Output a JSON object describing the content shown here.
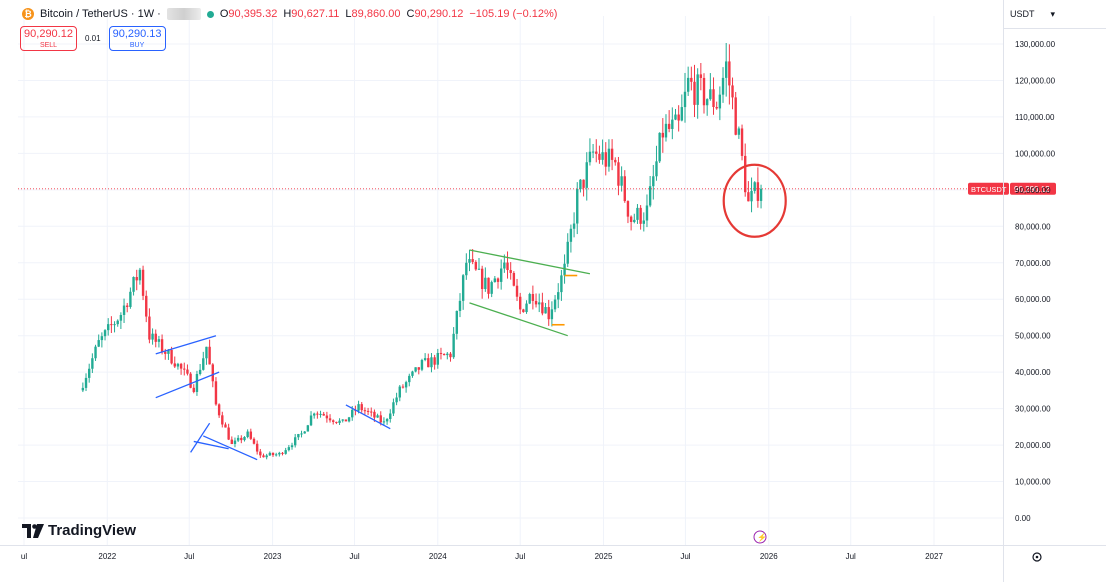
{
  "legend": {
    "symbol": "Bitcoin / TetherUS · 1W ·",
    "coin_icon": "bitcoin-icon",
    "open_label": "O",
    "open": "90,395.32",
    "high_label": "H",
    "high": "90,627.11",
    "low_label": "L",
    "low": "89,860.00",
    "close_label": "C",
    "close": "90,290.12",
    "change": "−105.19 (−0.12%)"
  },
  "trade": {
    "sell_price": "90,290.12",
    "sell_label": "SELL",
    "spread": "0.01",
    "buy_price": "90,290.13",
    "buy_label": "BUY"
  },
  "currency": "USDT",
  "currency_dropdown_icon": "chevron-down-icon",
  "logo_text": "TradingView",
  "price_tag": {
    "label": "BTCUSDT",
    "value": "90,290.12"
  },
  "colors": {
    "up": "#22ab94",
    "down": "#f23645",
    "blue_pattern": "#2962ff",
    "green_pattern": "#4caf50",
    "orange_marker": "#ff9800",
    "circle": "#e53935"
  },
  "chart_data": {
    "type": "candlestick",
    "y_axis": {
      "ticks": [
        0,
        10000,
        20000,
        30000,
        40000,
        50000,
        60000,
        70000,
        80000,
        90000,
        100000,
        110000,
        120000,
        130000
      ],
      "tick_labels": [
        "0.00",
        "10,000.00",
        "20,000.00",
        "30,000.00",
        "40,000.00",
        "50,000.00",
        "60,000.00",
        "70,000.00",
        "80,000.00",
        "90,000.00",
        "100,000.00",
        "110,000.00",
        "120,000.00",
        "130,000.00"
      ]
    },
    "x_axis": {
      "ticks": [
        {
          "label": "ul",
          "date": "2021-07"
        },
        {
          "label": "2022",
          "date": "2022-01"
        },
        {
          "label": "Jul",
          "date": "2022-07"
        },
        {
          "label": "2023",
          "date": "2023-01"
        },
        {
          "label": "Jul",
          "date": "2023-07"
        },
        {
          "label": "2024",
          "date": "2024-01"
        },
        {
          "label": "Jul",
          "date": "2024-07"
        },
        {
          "label": "2025",
          "date": "2025-01"
        },
        {
          "label": "Jul",
          "date": "2025-07"
        },
        {
          "label": "2026",
          "date": "2026-01"
        },
        {
          "label": "Jul",
          "date": "2026-07"
        },
        {
          "label": "2027",
          "date": "2027-01"
        }
      ]
    },
    "date_range": [
      "2021-11-08",
      "2025-12-15"
    ],
    "last_price": 90290.12,
    "anchors": [
      {
        "date": "2021-11-08",
        "price": 35000
      },
      {
        "date": "2021-12-20",
        "price": 48000
      },
      {
        "date": "2022-02-07",
        "price": 56000
      },
      {
        "date": "2022-03-21",
        "price": 68000
      },
      {
        "date": "2022-04-11",
        "price": 50000
      },
      {
        "date": "2022-06-06",
        "price": 43000
      },
      {
        "date": "2022-07-18",
        "price": 36000
      },
      {
        "date": "2022-08-15",
        "price": 47000
      },
      {
        "date": "2022-09-05",
        "price": 31000
      },
      {
        "date": "2022-10-10",
        "price": 20000
      },
      {
        "date": "2022-11-14",
        "price": 23000
      },
      {
        "date": "2022-12-12",
        "price": 17000
      },
      {
        "date": "2023-01-23",
        "price": 17500
      },
      {
        "date": "2023-03-13",
        "price": 23000
      },
      {
        "date": "2023-04-10",
        "price": 29500
      },
      {
        "date": "2023-06-12",
        "price": 26000
      },
      {
        "date": "2023-07-17",
        "price": 30500
      },
      {
        "date": "2023-09-11",
        "price": 26000
      },
      {
        "date": "2023-10-16",
        "price": 35000
      },
      {
        "date": "2023-12-04",
        "price": 42000
      },
      {
        "date": "2024-02-05",
        "price": 45000
      },
      {
        "date": "2024-03-11",
        "price": 70000
      },
      {
        "date": "2024-04-29",
        "price": 63000
      },
      {
        "date": "2024-06-03",
        "price": 70000
      },
      {
        "date": "2024-07-08",
        "price": 57000
      },
      {
        "date": "2024-08-05",
        "price": 62000
      },
      {
        "date": "2024-09-09",
        "price": 56000
      },
      {
        "date": "2024-10-14",
        "price": 68000
      },
      {
        "date": "2024-11-11",
        "price": 88000
      },
      {
        "date": "2024-12-16",
        "price": 100000
      },
      {
        "date": "2025-02-03",
        "price": 97000
      },
      {
        "date": "2025-03-10",
        "price": 82000
      },
      {
        "date": "2025-04-14",
        "price": 84000
      },
      {
        "date": "2025-05-19",
        "price": 106000
      },
      {
        "date": "2025-06-23",
        "price": 107000
      },
      {
        "date": "2025-07-14",
        "price": 119000
      },
      {
        "date": "2025-08-18",
        "price": 116000
      },
      {
        "date": "2025-09-15",
        "price": 114000
      },
      {
        "date": "2025-10-06",
        "price": 124000
      },
      {
        "date": "2025-11-03",
        "price": 104000
      },
      {
        "date": "2025-11-24",
        "price": 86000
      },
      {
        "date": "2025-12-15",
        "price": 90290
      }
    ],
    "annotations": [
      {
        "kind": "trend-channel",
        "color": "blue",
        "points": [
          [
            "2022-04-18",
            45000
          ],
          [
            "2022-08-29",
            50000
          ],
          [
            "2022-04-18",
            33000
          ],
          [
            "2022-09-05",
            40000
          ]
        ]
      },
      {
        "kind": "triangle",
        "color": "blue",
        "points": [
          [
            "2022-07-04",
            18000
          ],
          [
            "2022-08-15",
            26000
          ],
          [
            "2022-08-01",
            22500
          ],
          [
            "2022-11-28",
            16000
          ]
        ]
      },
      {
        "kind": "wedge",
        "color": "blue",
        "points": [
          [
            "2022-07-11",
            21000
          ],
          [
            "2022-09-26",
            19000
          ]
        ]
      },
      {
        "kind": "trend-line",
        "color": "blue",
        "points": [
          [
            "2023-06-12",
            31000
          ],
          [
            "2023-09-18",
            24500
          ]
        ]
      },
      {
        "kind": "falling-channel",
        "color": "green",
        "points": [
          [
            "2024-03-11",
            73500
          ],
          [
            "2024-12-02",
            67000
          ],
          [
            "2024-03-11",
            59000
          ],
          [
            "2024-10-14",
            50000
          ]
        ]
      },
      {
        "kind": "marker",
        "color": "orange",
        "points": [
          [
            "2024-09-09",
            53000
          ],
          [
            "2024-10-07",
            53000
          ]
        ]
      },
      {
        "kind": "marker",
        "color": "orange",
        "points": [
          [
            "2024-10-07",
            66500
          ],
          [
            "2024-11-04",
            66500
          ]
        ]
      },
      {
        "kind": "ellipse",
        "color": "red",
        "center": [
          "2025-12-01",
          87000
        ]
      }
    ]
  }
}
